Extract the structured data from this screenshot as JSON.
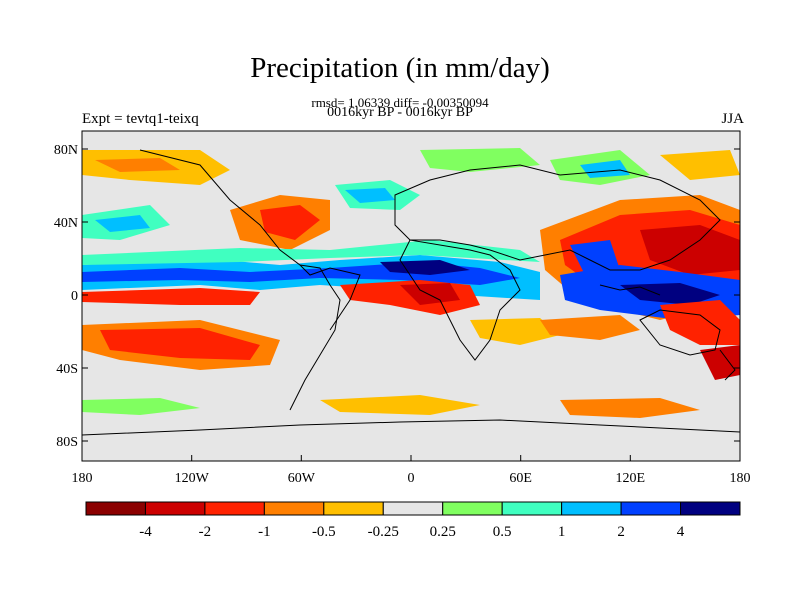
{
  "title": "Precipitation (in mm/day)",
  "stats": "rmsd= 1.06339 diff= -0.00350094",
  "period": "0016kyr BP - 0016kyr BP",
  "experiment": "Expt = tevtq1-teixq",
  "season": "JJA",
  "lat_ticks": [
    "80N",
    "40N",
    "0",
    "40S",
    "80S"
  ],
  "lon_ticks": [
    "180",
    "120W",
    "60W",
    "0",
    "60E",
    "120E",
    "180"
  ],
  "colorbar": {
    "colors": [
      "#8b0000",
      "#cc0000",
      "#ff2200",
      "#ff7f00",
      "#ffbf00",
      "#e6e6e6",
      "#80ff60",
      "#40ffc0",
      "#00bfff",
      "#0040ff",
      "#000080"
    ],
    "labels": [
      "-4",
      "-2",
      "-1",
      "-0.5",
      "-0.25",
      "0.25",
      "0.5",
      "1",
      "2",
      "4"
    ]
  },
  "background_color": "#e6e6e6"
}
